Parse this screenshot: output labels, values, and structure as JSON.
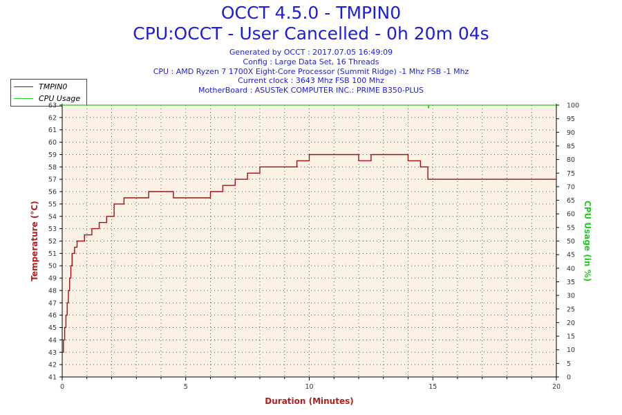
{
  "header": {
    "title_line1": "OCCT 4.5.0 - TMPIN0",
    "title_line2": "CPU:OCCT - User Cancelled - 0h 20m 04s",
    "info": [
      "Generated by OCCT : 2017.07.05 16:49:09",
      "Config : Large Data Set, 16 Threads",
      "CPU : AMD Ryzen 7 1700X Eight-Core Processor (Summit Ridge) -1 Mhz FSB -1 Mhz",
      "Current clock : 3643 Mhz FSB 100 Mhz",
      "MotherBoard : ASUSTeK COMPUTER INC.: PRIME B350-PLUS"
    ]
  },
  "colors": {
    "title": "#1c1ce0",
    "temperature": "#a01010",
    "cpu_usage": "#22cc22",
    "plot_background": "#fbf1e4",
    "axis_label": "#b02020"
  },
  "chart_data": {
    "type": "line",
    "xlabel": "Duration (Minutes)",
    "ylabel": "Temperature (°C)",
    "y2label": "CPU Usage (in %)",
    "xlim": [
      0,
      20
    ],
    "ylim": [
      41,
      63
    ],
    "y2lim": [
      0,
      100
    ],
    "x_ticks": [
      0,
      5,
      10,
      15,
      20
    ],
    "y_ticks": [
      41,
      42,
      43,
      44,
      45,
      46,
      47,
      48,
      49,
      50,
      51,
      52,
      53,
      54,
      55,
      56,
      57,
      58,
      59,
      60,
      61,
      62,
      63
    ],
    "y2_ticks": [
      0,
      5,
      10,
      15,
      20,
      25,
      30,
      35,
      40,
      45,
      50,
      55,
      60,
      65,
      70,
      75,
      80,
      85,
      90,
      95,
      100
    ],
    "grid": true,
    "legend_position": "top-left",
    "series": [
      {
        "name": "TMPIN0",
        "axis": "left",
        "x": [
          0,
          0.05,
          0.1,
          0.15,
          0.2,
          0.25,
          0.3,
          0.35,
          0.4,
          0.5,
          0.6,
          0.7,
          0.9,
          1.2,
          1.5,
          1.8,
          2.1,
          2.5,
          3.0,
          3.5,
          4.0,
          4.5,
          5.0,
          5.5,
          6.0,
          6.5,
          7.0,
          7.5,
          8.0,
          8.5,
          9.0,
          9.5,
          10.0,
          10.5,
          11.0,
          11.5,
          12.0,
          12.5,
          13.0,
          13.5,
          14.0,
          14.5,
          14.8,
          15.0,
          15.5,
          16.0,
          16.5,
          17.0,
          17.5,
          18.0,
          18.5,
          19.0,
          19.5,
          19.9,
          20.0
        ],
        "values": [
          43,
          44,
          45,
          46,
          47,
          48,
          49,
          50,
          51,
          51.5,
          52,
          52,
          52.5,
          53,
          53.5,
          54,
          55,
          55.5,
          55.5,
          56,
          56,
          55.5,
          55.5,
          55.5,
          56,
          56.5,
          57,
          57.5,
          58,
          58,
          58,
          58.5,
          59,
          59,
          59,
          59,
          58.5,
          59,
          59,
          59,
          58.5,
          58,
          57,
          57,
          57,
          57,
          57,
          57,
          57,
          57,
          57,
          57,
          57,
          57,
          57
        ]
      },
      {
        "name": "CPU Usage",
        "axis": "right",
        "x": [
          0,
          14.8,
          14.82,
          14.84,
          20
        ],
        "values": [
          100,
          100,
          99,
          100,
          100
        ]
      }
    ]
  }
}
